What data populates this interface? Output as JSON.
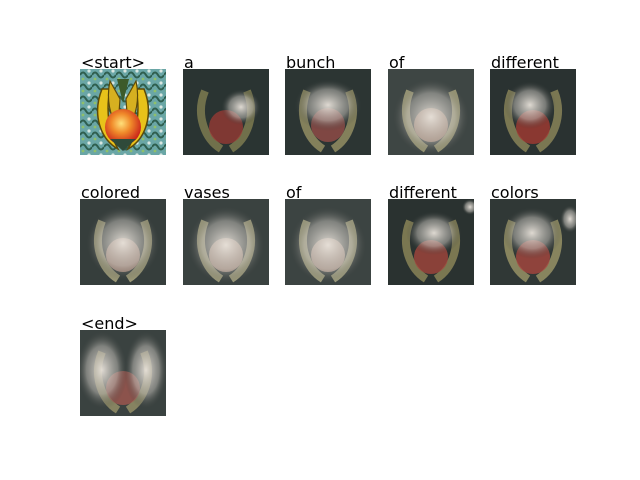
{
  "tokens": [
    {
      "word": "<start>",
      "style": "original"
    },
    {
      "word": "a",
      "style": "attention"
    },
    {
      "word": "bunch",
      "style": "attention"
    },
    {
      "word": "of",
      "style": "attention"
    },
    {
      "word": "different",
      "style": "attention"
    },
    {
      "word": "colored",
      "style": "attention"
    },
    {
      "word": "vases",
      "style": "attention"
    },
    {
      "word": "of",
      "style": "attention"
    },
    {
      "word": "different",
      "style": "attention"
    },
    {
      "word": "colors",
      "style": "attention"
    },
    {
      "word": "<end>",
      "style": "attention"
    }
  ]
}
